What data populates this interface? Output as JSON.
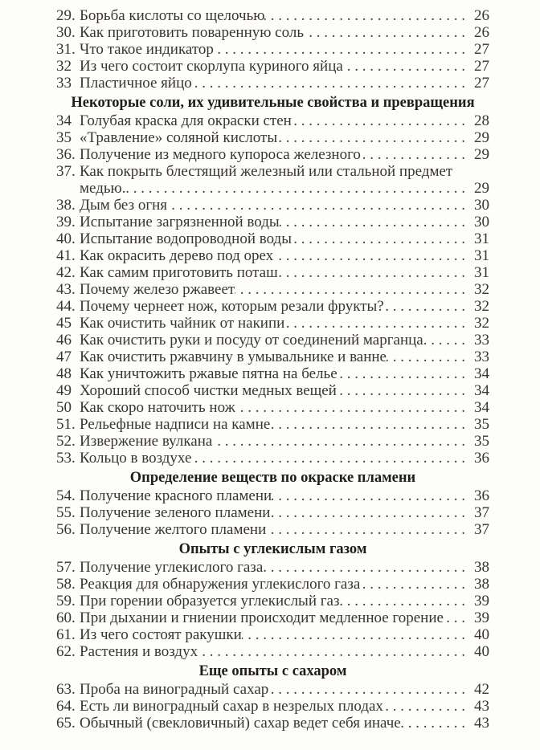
{
  "page": {
    "kind": "book-table-of-contents",
    "language": "ru",
    "colors": {
      "background": "#fdfdfc",
      "text": "#39352f",
      "header_text": "#201d1b",
      "leader_dots": "#403c37"
    }
  },
  "toc": {
    "sections": [
      {
        "header": "",
        "items": [
          {
            "num": "29.",
            "title": "Борьба кислоты со щелочью",
            "page": "26"
          },
          {
            "num": "30.",
            "title": "Как приготовить поваренную соль",
            "page": "26"
          },
          {
            "num": "31.",
            "title": "Что такое индикатор",
            "page": "27"
          },
          {
            "num": "32",
            "title": "Из чего состоит скорлупа куриного яйца",
            "page": "27"
          },
          {
            "num": "33",
            "title": "Пластичное яйцо",
            "page": "27"
          }
        ]
      },
      {
        "header": "Некоторые соли, их удивительные свойства и превращения",
        "items": [
          {
            "num": "34",
            "title": "Голубая краска для окраски стен",
            "page": "28"
          },
          {
            "num": "35",
            "title": "«Травление» соляной кислоты",
            "page": "29"
          },
          {
            "num": "36.",
            "title": "Получение из медного купороса железного",
            "page": "29"
          },
          {
            "num": "37.",
            "title": "Как покрыть блестящий железный или стальной предмет",
            "wrap": "медью.",
            "page": "29"
          },
          {
            "num": "38.",
            "title": "Дым без огня",
            "page": "30"
          },
          {
            "num": "39.",
            "title": "Испытание загрязненной воды",
            "page": "30"
          },
          {
            "num": "40.",
            "title": "Испытание водопроводной воды",
            "page": "31"
          },
          {
            "num": "41.",
            "title": "Как окрасить дерево под орех",
            "page": "31"
          },
          {
            "num": "42.",
            "title": "Как самим приготовить поташ",
            "page": "31"
          },
          {
            "num": "43.",
            "title": "Почему железо ржавеет",
            "page": "32"
          },
          {
            "num": "44.",
            "title": "Почему чернеет нож, которым резали фрукты?",
            "page": "32"
          },
          {
            "num": "45",
            "title": "Как очистить чайник от накипи",
            "page": "32"
          },
          {
            "num": "46",
            "title": "Как очистить руки и посуду от соединений марганца",
            "page": "33"
          },
          {
            "num": "47",
            "title": "Как очистить ржавчину в умывальнике и ванне",
            "page": "33"
          },
          {
            "num": "48",
            "title": "Как уничтожить ржавые пятна на белье",
            "page": "34"
          },
          {
            "num": "49",
            "title": "Хороший способ чистки медных вещей",
            "page": "34"
          },
          {
            "num": "50",
            "title": "Как скоро наточить нож",
            "page": "34"
          },
          {
            "num": "51.",
            "title": "Рельефные надписи на камне",
            "page": "35"
          },
          {
            "num": "52.",
            "title": "Извержение вулкана",
            "page": "35"
          },
          {
            "num": "53.",
            "title": "Кольцо в воздухе",
            "page": "36"
          }
        ]
      },
      {
        "header": "Определение веществ по окраске пламени",
        "items": [
          {
            "num": "54.",
            "title": "Получение красного пламени",
            "page": "36"
          },
          {
            "num": "55.",
            "title": "Получение зеленого пламени",
            "page": "37"
          },
          {
            "num": "56.",
            "title": "Получение желтого пламени",
            "page": "37"
          }
        ]
      },
      {
        "header": "Опыты с углекислым газом",
        "items": [
          {
            "num": "57.",
            "title": "Получение углекислого газа",
            "page": "38"
          },
          {
            "num": "58.",
            "title": "Реакция для обнаружения углекислого газа",
            "page": "38"
          },
          {
            "num": "59.",
            "title": "При горении образуется углекислый газ",
            "page": "39"
          },
          {
            "num": "60.",
            "title": "При дыхании и гниении происходит медленное горение",
            "page": "39"
          },
          {
            "num": "61.",
            "title": "Из чего состоят ракушки",
            "page": "40"
          },
          {
            "num": "62.",
            "title": "Растения и воздух",
            "page": "40"
          }
        ]
      },
      {
        "header": "Еще опыты с сахаром",
        "items": [
          {
            "num": "63.",
            "title": "Проба на виноградный сахар",
            "page": "42"
          },
          {
            "num": "64.",
            "title": "Есть ли виноградный сахар в незрелых плодах",
            "page": "43"
          },
          {
            "num": "65.",
            "title": "Обычный (свекловичный) сахар ведет себя иначе",
            "page": "43"
          }
        ]
      }
    ]
  }
}
